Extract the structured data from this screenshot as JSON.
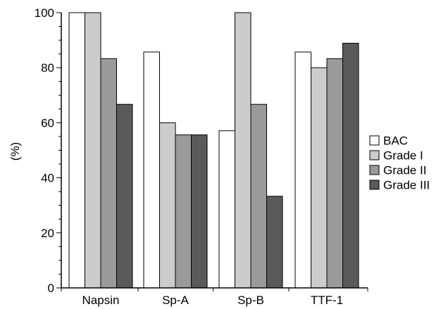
{
  "chart_data": {
    "type": "bar",
    "title": "",
    "xlabel": "",
    "ylabel": "(%)",
    "ylim": [
      0,
      100
    ],
    "yticks": [
      "0",
      "20",
      "40",
      "60",
      "80",
      "100"
    ],
    "ytick_values": [
      0,
      20,
      40,
      60,
      80,
      100
    ],
    "grid": false,
    "legend_position": "right",
    "categories": [
      "Napsin",
      "Sp-A",
      "Sp-B",
      "TTF-1"
    ],
    "series": [
      {
        "name": "BAC",
        "color": "#ffffff",
        "values": [
          100,
          85.7,
          57.1,
          85.7
        ]
      },
      {
        "name": "Grade I",
        "color": "#cccccc",
        "values": [
          100,
          60,
          100,
          80
        ]
      },
      {
        "name": "Grade II",
        "color": "#9a9a9a",
        "values": [
          83.3,
          55.6,
          66.7,
          83.3
        ]
      },
      {
        "name": "Grade III",
        "color": "#5a5a5a",
        "values": [
          66.7,
          55.6,
          33.3,
          88.9
        ]
      }
    ]
  }
}
